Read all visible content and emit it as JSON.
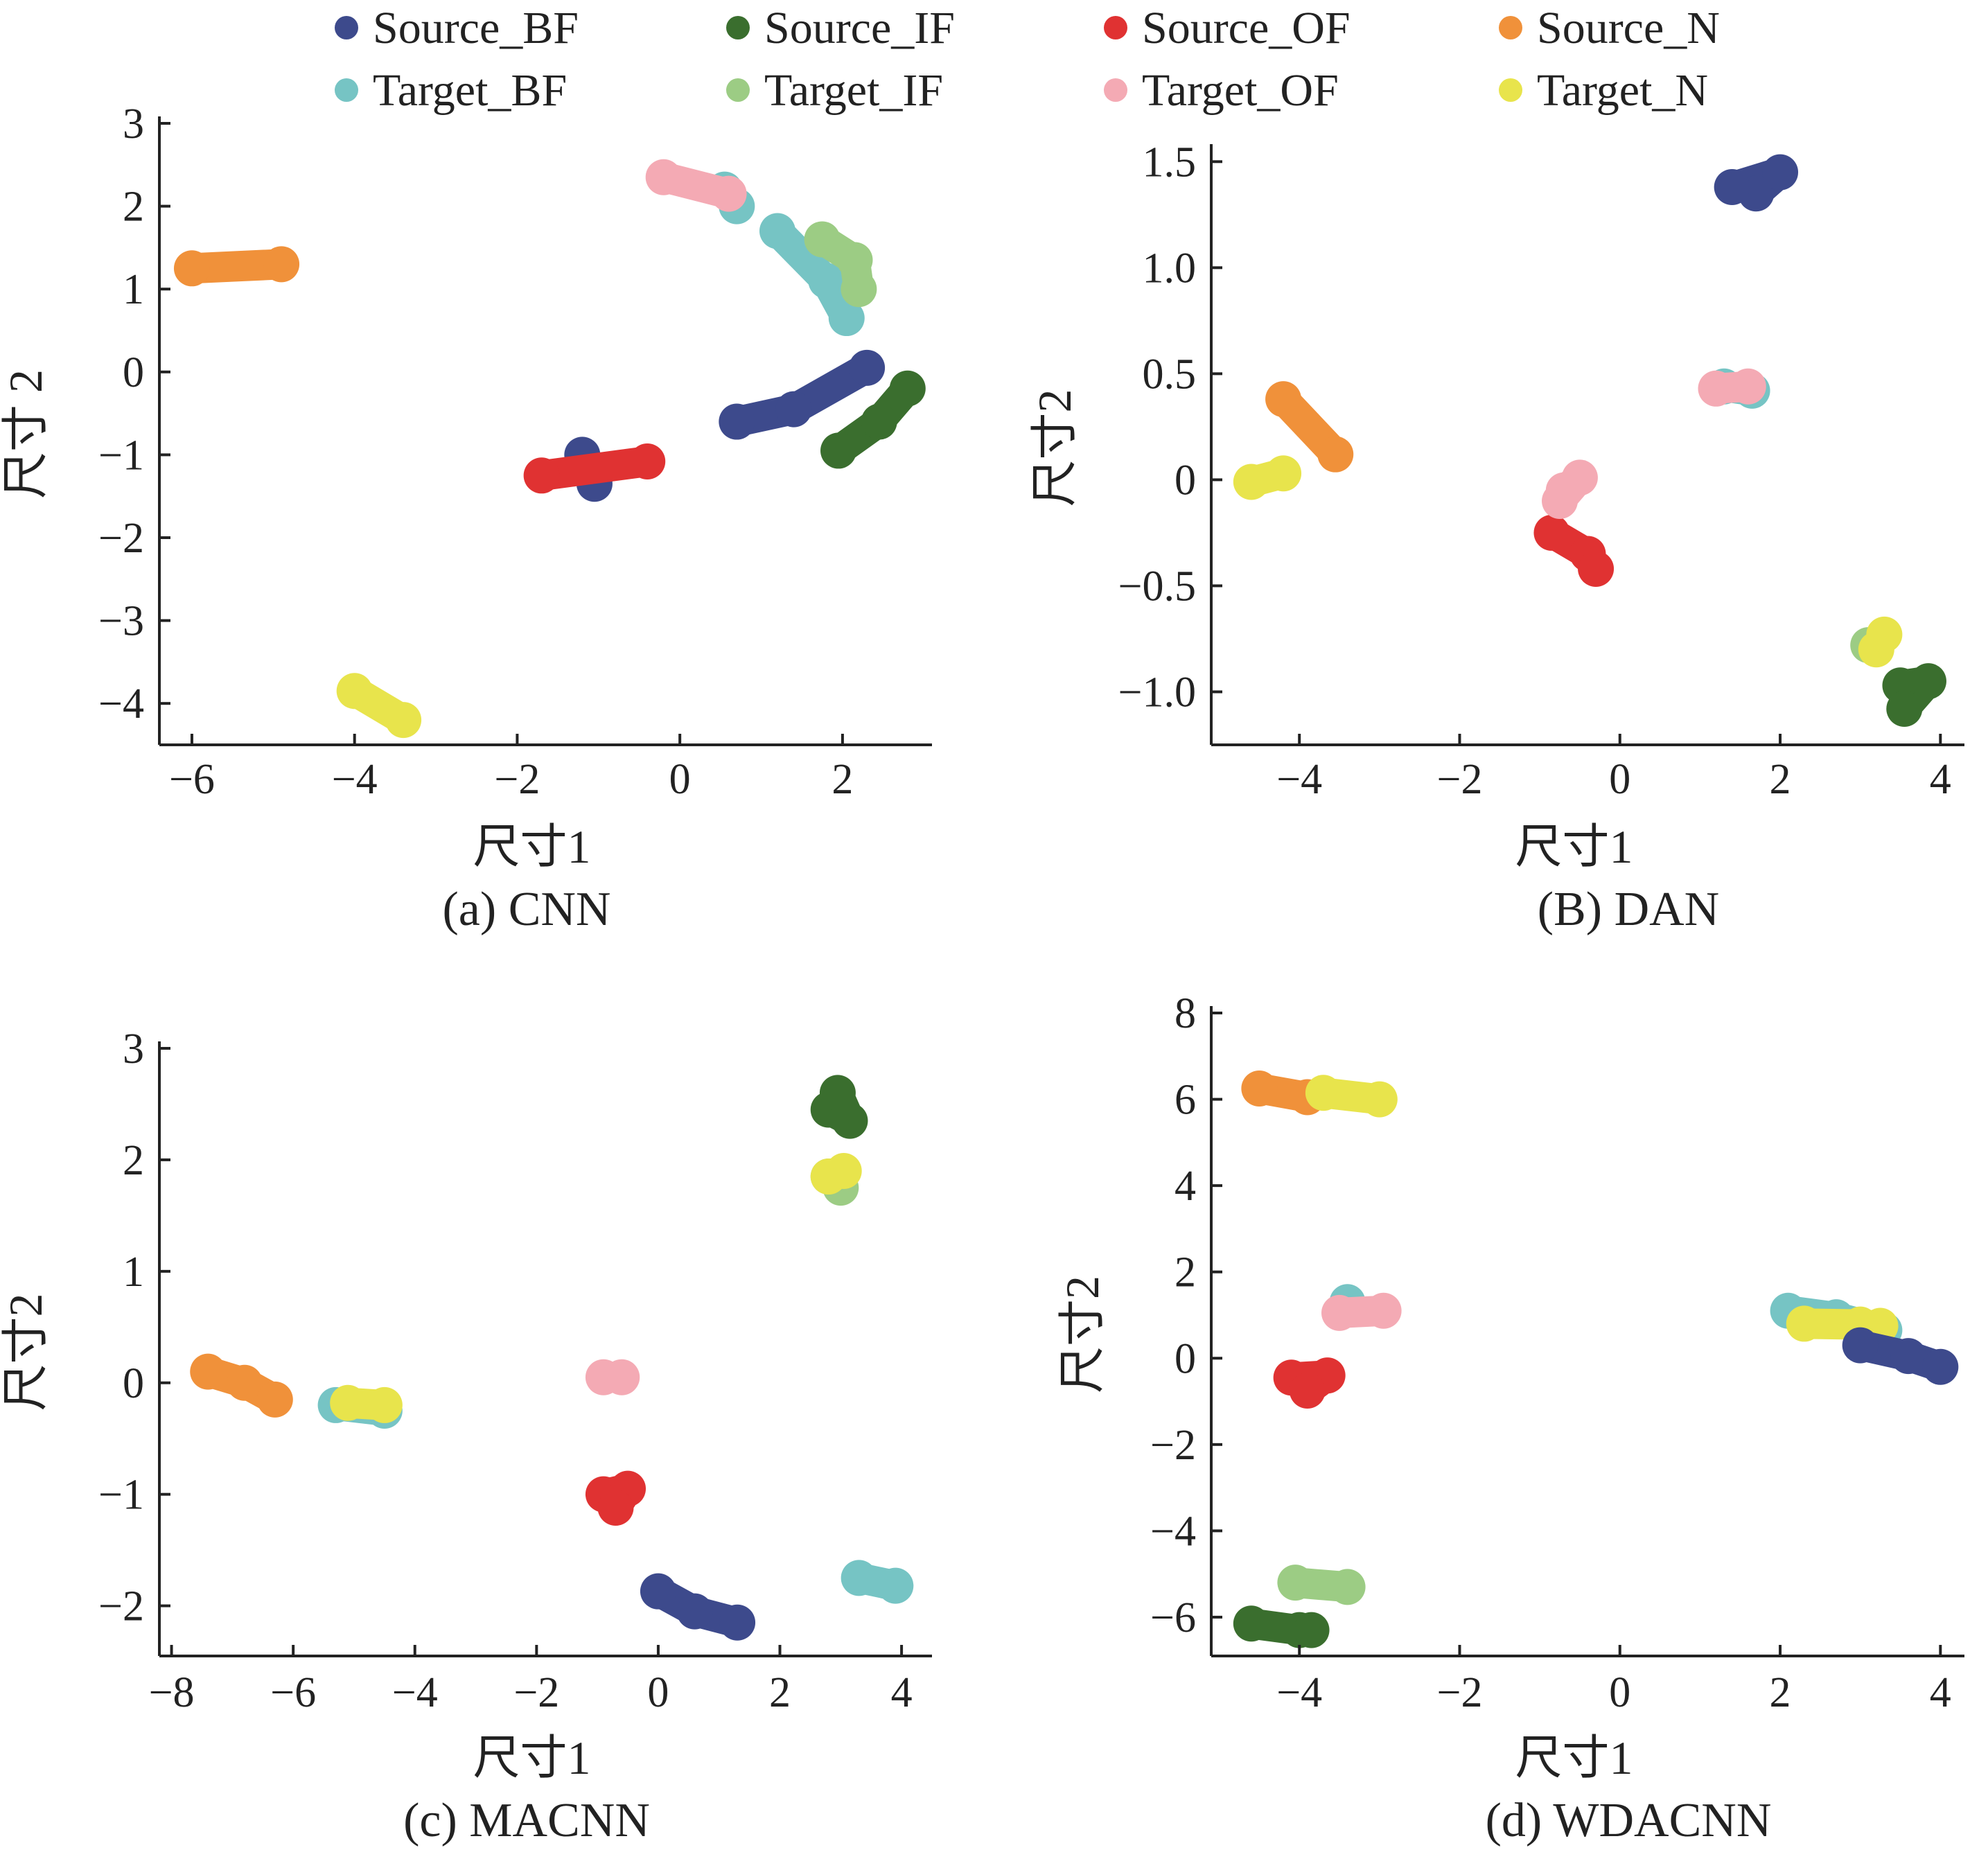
{
  "legend": [
    {
      "name": "Source_BF",
      "color": "#3d4a8c"
    },
    {
      "name": "Source_IF",
      "color": "#3a6e2e"
    },
    {
      "name": "Source_OF",
      "color": "#e03232"
    },
    {
      "name": "Source_N",
      "color": "#f0913a"
    },
    {
      "name": "Target_BF",
      "color": "#76c4c4"
    },
    {
      "name": "Target_IF",
      "color": "#9ccc84"
    },
    {
      "name": "Target_OF",
      "color": "#f4aab4"
    },
    {
      "name": "Target_N",
      "color": "#e8e44c"
    }
  ],
  "chart_data": [
    {
      "type": "scatter",
      "caption": "(a) CNN",
      "xlabel": "尺寸1",
      "ylabel": "尺寸 2",
      "xlim": [
        -6.4,
        3.1
      ],
      "ylim": [
        -4.5,
        3.0
      ],
      "xticks": [
        -6,
        -4,
        -2,
        0,
        2
      ],
      "yticks": [
        -4,
        -3,
        -2,
        -1,
        0,
        1,
        2,
        3
      ],
      "clusters": [
        {
          "series": "Source_N",
          "points": [
            [
              -6.0,
              1.25
            ],
            [
              -4.9,
              1.3
            ]
          ]
        },
        {
          "series": "Target_N",
          "points": [
            [
              -4.0,
              -3.85
            ],
            [
              -3.4,
              -4.2
            ]
          ]
        },
        {
          "series": "Source_BF",
          "points": [
            [
              -1.2,
              -1.0
            ],
            [
              -1.05,
              -1.35
            ]
          ]
        },
        {
          "series": "Source_OF",
          "points": [
            [
              -1.7,
              -1.25
            ],
            [
              -0.4,
              -1.08
            ]
          ]
        },
        {
          "series": "Source_BF",
          "points": [
            [
              0.7,
              -0.6
            ],
            [
              1.4,
              -0.45
            ],
            [
              2.3,
              0.05
            ]
          ]
        },
        {
          "series": "Source_IF",
          "points": [
            [
              1.95,
              -0.95
            ],
            [
              2.45,
              -0.6
            ],
            [
              2.8,
              -0.2
            ]
          ]
        },
        {
          "series": "Target_BF",
          "points": [
            [
              0.55,
              2.2
            ],
            [
              0.7,
              2.0
            ]
          ]
        },
        {
          "series": "Target_OF",
          "points": [
            [
              -0.2,
              2.35
            ],
            [
              0.6,
              2.15
            ]
          ]
        },
        {
          "series": "Target_BF",
          "points": [
            [
              1.2,
              1.7
            ],
            [
              1.8,
              1.1
            ],
            [
              2.05,
              0.65
            ]
          ]
        },
        {
          "series": "Target_IF",
          "points": [
            [
              1.75,
              1.6
            ],
            [
              2.15,
              1.35
            ],
            [
              2.2,
              1.0
            ]
          ]
        }
      ]
    },
    {
      "type": "scatter",
      "caption": "(B) DAN",
      "xlabel": "尺寸1",
      "ylabel": "尺寸2",
      "xlim": [
        -5.1,
        4.3
      ],
      "ylim": [
        -1.25,
        1.55
      ],
      "xticks": [
        -4,
        -2,
        0,
        2,
        4
      ],
      "ytick_values": [
        -1.0,
        -0.5,
        0,
        0.5,
        1.0,
        1.5
      ],
      "ytick_labels": [
        "−1.0",
        "−0.5",
        "0",
        "0.5",
        "1.0",
        "1.5"
      ],
      "clusters": [
        {
          "series": "Source_BF",
          "points": [
            [
              1.7,
              1.35
            ],
            [
              2.0,
              1.45
            ],
            [
              1.4,
              1.38
            ]
          ]
        },
        {
          "series": "Target_BF",
          "points": [
            [
              1.3,
              0.44
            ],
            [
              1.65,
              0.42
            ]
          ]
        },
        {
          "series": "Target_OF",
          "points": [
            [
              1.2,
              0.43
            ],
            [
              1.6,
              0.44
            ]
          ]
        },
        {
          "series": "Source_N",
          "points": [
            [
              -4.2,
              0.38
            ],
            [
              -3.55,
              0.12
            ]
          ]
        },
        {
          "series": "Target_N",
          "points": [
            [
              -4.6,
              -0.01
            ],
            [
              -4.2,
              0.03
            ]
          ]
        },
        {
          "series": "Source_OF",
          "points": [
            [
              -0.85,
              -0.25
            ],
            [
              -0.4,
              -0.35
            ],
            [
              -0.3,
              -0.42
            ]
          ]
        },
        {
          "series": "Target_OF",
          "points": [
            [
              -0.7,
              -0.05
            ],
            [
              -0.5,
              0.01
            ],
            [
              -0.75,
              -0.1
            ]
          ]
        },
        {
          "series": "Source_IF",
          "points": [
            [
              3.5,
              -0.97
            ],
            [
              3.85,
              -0.95
            ],
            [
              3.55,
              -1.08
            ]
          ]
        },
        {
          "series": "Target_IF",
          "points": [
            [
              3.1,
              -0.78
            ]
          ]
        },
        {
          "series": "Target_N",
          "points": [
            [
              3.2,
              -0.8
            ],
            [
              3.3,
              -0.73
            ]
          ]
        }
      ]
    },
    {
      "type": "scatter",
      "caption": "(c) MACNN",
      "xlabel": "尺寸1",
      "ylabel": "尺寸2",
      "xlim": [
        -8.2,
        4.5
      ],
      "ylim": [
        -2.45,
        3.0
      ],
      "xticks": [
        -8,
        -6,
        -4,
        -2,
        0,
        2,
        4
      ],
      "yticks": [
        -2,
        -1,
        0,
        1,
        2,
        3
      ],
      "clusters": [
        {
          "series": "Source_IF",
          "points": [
            [
              2.8,
              2.45
            ],
            [
              3.15,
              2.35
            ],
            [
              2.95,
              2.6
            ]
          ]
        },
        {
          "series": "Target_IF",
          "points": [
            [
              2.8,
              1.85
            ],
            [
              3.0,
              1.75
            ]
          ]
        },
        {
          "series": "Target_N",
          "points": [
            [
              2.8,
              1.85
            ],
            [
              3.05,
              1.9
            ]
          ]
        },
        {
          "series": "Source_N",
          "points": [
            [
              -7.4,
              0.1
            ],
            [
              -6.8,
              0.0
            ],
            [
              -6.3,
              -0.15
            ]
          ]
        },
        {
          "series": "Target_BF",
          "points": [
            [
              -5.3,
              -0.2
            ],
            [
              -4.5,
              -0.25
            ]
          ]
        },
        {
          "series": "Target_N",
          "points": [
            [
              -5.1,
              -0.18
            ],
            [
              -4.5,
              -0.2
            ]
          ]
        },
        {
          "series": "Target_OF",
          "points": [
            [
              -0.9,
              0.05
            ],
            [
              -0.6,
              0.05
            ]
          ]
        },
        {
          "series": "Source_OF",
          "points": [
            [
              -0.9,
              -1.0
            ],
            [
              -0.5,
              -0.95
            ],
            [
              -0.7,
              -1.12
            ]
          ]
        },
        {
          "series": "Source_BF",
          "points": [
            [
              0.0,
              -1.87
            ],
            [
              0.6,
              -2.05
            ],
            [
              1.3,
              -2.15
            ]
          ]
        },
        {
          "series": "Target_BF",
          "points": [
            [
              3.3,
              -1.75
            ],
            [
              3.9,
              -1.82
            ]
          ]
        }
      ]
    },
    {
      "type": "scatter",
      "caption": "(d) WDACNN",
      "xlabel": "尺寸1",
      "ylabel": "尺寸2",
      "xlim": [
        -5.1,
        4.3
      ],
      "ylim": [
        -6.9,
        8.0
      ],
      "xticks": [
        -4,
        -2,
        0,
        2,
        4
      ],
      "yticks": [
        -6,
        -4,
        -2,
        0,
        2,
        4,
        6,
        8
      ],
      "clusters": [
        {
          "series": "Source_N",
          "points": [
            [
              -4.5,
              6.25
            ],
            [
              -3.9,
              6.05
            ]
          ]
        },
        {
          "series": "Target_N",
          "points": [
            [
              -3.7,
              6.15
            ],
            [
              -3.0,
              6.0
            ]
          ]
        },
        {
          "series": "Target_BF",
          "points": [
            [
              -3.4,
              1.3
            ]
          ]
        },
        {
          "series": "Target_OF",
          "points": [
            [
              -3.5,
              1.05
            ],
            [
              -2.95,
              1.1
            ]
          ]
        },
        {
          "series": "Source_OF",
          "points": [
            [
              -4.1,
              -0.45
            ],
            [
              -3.65,
              -0.4
            ],
            [
              -3.9,
              -0.75
            ]
          ]
        },
        {
          "series": "Target_IF",
          "points": [
            [
              -4.05,
              -5.2
            ],
            [
              -3.4,
              -5.3
            ]
          ]
        },
        {
          "series": "Source_IF",
          "points": [
            [
              -4.6,
              -6.15
            ],
            [
              -4.0,
              -6.3
            ],
            [
              -3.85,
              -6.3
            ]
          ]
        },
        {
          "series": "Target_BF",
          "points": [
            [
              2.1,
              1.1
            ],
            [
              2.7,
              0.95
            ],
            [
              3.3,
              0.65
            ]
          ]
        },
        {
          "series": "Target_N",
          "points": [
            [
              2.3,
              0.8
            ],
            [
              3.0,
              0.78
            ],
            [
              3.25,
              0.75
            ]
          ]
        },
        {
          "series": "Source_BF",
          "points": [
            [
              3.0,
              0.3
            ],
            [
              3.6,
              0.05
            ],
            [
              4.0,
              -0.2
            ]
          ]
        }
      ]
    }
  ]
}
